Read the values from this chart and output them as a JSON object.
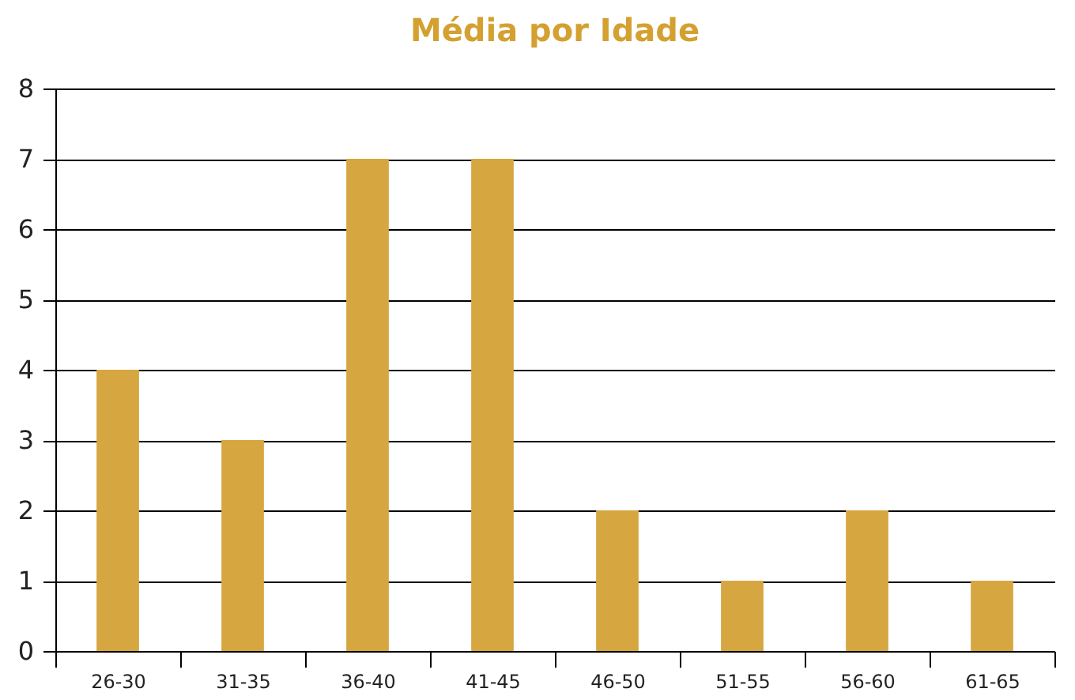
{
  "chart_data": {
    "type": "bar",
    "title": "Média por Idade",
    "categories": [
      "26-30",
      "31-35",
      "36-40",
      "41-45",
      "46-50",
      "51-55",
      "56-60",
      "61-65"
    ],
    "values": [
      4,
      3,
      7,
      7,
      2,
      1,
      2,
      1
    ],
    "color": "#d6a640",
    "ylim": [
      0,
      8
    ],
    "yticks": [
      0,
      1,
      2,
      3,
      4,
      5,
      6,
      7,
      8
    ],
    "grid": "y"
  }
}
